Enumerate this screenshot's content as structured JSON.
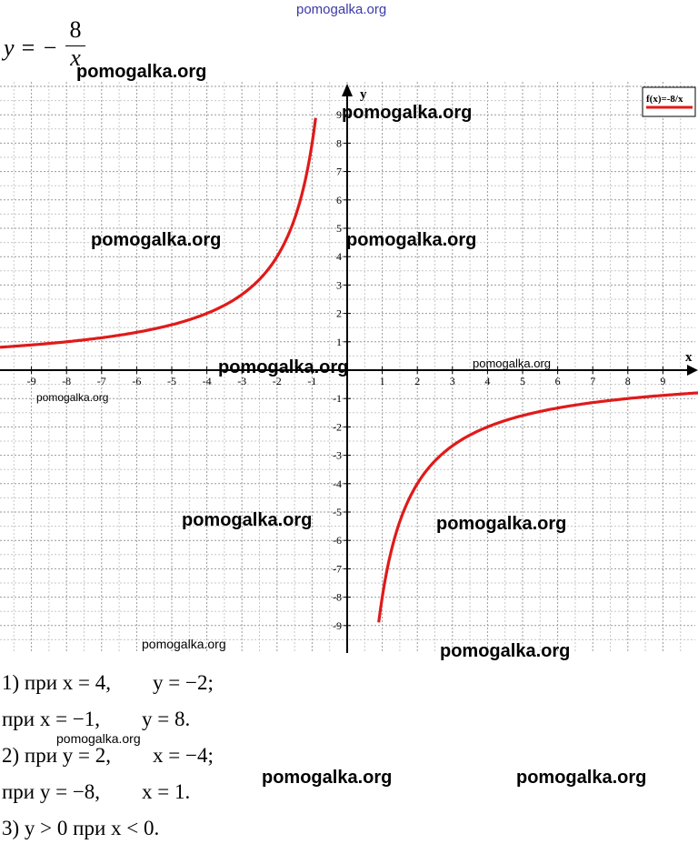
{
  "header": {
    "watermark_top": "pomogalka.org"
  },
  "formula": {
    "lhs": "y = −",
    "numerator": "8",
    "denominator": "x"
  },
  "chart_data": {
    "type": "line",
    "xlabel": "x",
    "ylabel": "y",
    "xlim": [
      -10,
      10
    ],
    "ylim": [
      -10,
      10
    ],
    "grid": true,
    "legend": {
      "placement": "top-right",
      "label": "f(x)=-8/x",
      "color": "#e01a1a"
    },
    "x_ticks": [
      -9,
      -8,
      -7,
      -6,
      -5,
      -4,
      -3,
      -2,
      -1,
      1,
      2,
      3,
      4,
      5,
      6,
      7,
      8,
      9
    ],
    "y_ticks": [
      -9,
      -8,
      -7,
      -6,
      -5,
      -4,
      -3,
      -2,
      -1,
      1,
      2,
      3,
      4,
      5,
      6,
      7,
      8,
      9
    ],
    "series": [
      {
        "name": "f(x)=-8/x",
        "color": "#e01a1a",
        "branches": [
          {
            "x": [
              -10,
              -9,
              -8,
              -7,
              -6,
              -5,
              -4,
              -3,
              -2.5,
              -2,
              -1.6,
              -1.3,
              -1.1,
              -0.9
            ],
            "y": [
              0.8,
              0.89,
              1,
              1.14,
              1.33,
              1.6,
              2,
              2.67,
              3.2,
              4,
              5,
              6.15,
              7.27,
              8.89
            ]
          },
          {
            "x": [
              0.9,
              1,
              1.1,
              1.3,
              1.6,
              2,
              2.5,
              3,
              4,
              5,
              6,
              7,
              8,
              9,
              10
            ],
            "y": [
              -8.89,
              -8,
              -7.27,
              -6.15,
              -5,
              -4,
              -3.2,
              -2.67,
              -2,
              -1.6,
              -1.33,
              -1.14,
              -1,
              -0.89,
              -0.8
            ]
          }
        ]
      }
    ]
  },
  "watermarks": {
    "w1": "pomogalka.org",
    "w2": "pomogalka.org",
    "w3": "pomogalka.org",
    "w4": "pomogalka.org",
    "w5": "pomogalka.org",
    "w6": "pomogalka.org",
    "w7": "pomogalka.org",
    "w8": "pomogalka.org",
    "w9": "pomogalka.org",
    "w10": "pomogalka.org",
    "w11": "pomogalka.org",
    "w12": "pomogalka.org",
    "w13": "pomogalka.org",
    "w14": "pomogalka.org"
  },
  "answers": {
    "line1": "1) при x = 4,        y = −2;",
    "line2": "при x = −1,        y = 8.",
    "line3": "2) при y = 2,        x = −4;",
    "line4": "при y = −8,        x = 1.",
    "line5": "3) y > 0 при x < 0."
  }
}
